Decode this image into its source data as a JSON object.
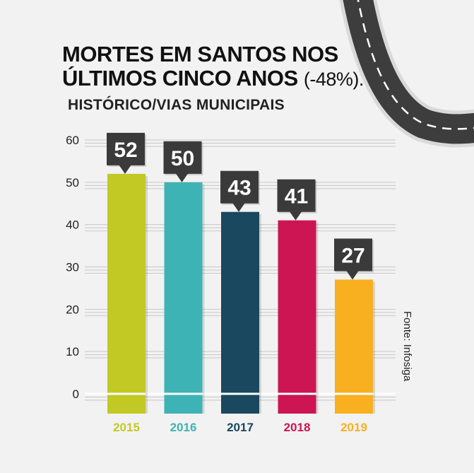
{
  "header": {
    "title_line1": "MORTES EM SANTOS NOS",
    "title_line2": "ÚLTIMOS CINCO ANOS",
    "title_change": "(-48%).",
    "subtitle": "HISTÓRICO/VIAS MUNICIPAIS"
  },
  "source": "Fonte: Infosiga",
  "chart_data": {
    "type": "bar",
    "categories": [
      "2015",
      "2016",
      "2017",
      "2018",
      "2019"
    ],
    "values": [
      52,
      50,
      43,
      41,
      27
    ],
    "data_labels": [
      "52",
      "50",
      "43",
      "41",
      "27"
    ],
    "colors": [
      "#c2c924",
      "#3eb3b5",
      "#19485f",
      "#cc1552",
      "#f8b021"
    ],
    "ylim": [
      0,
      60
    ],
    "yticks": [
      0,
      10,
      20,
      30,
      40,
      50,
      60
    ],
    "ytick_labels": [
      "0",
      "10",
      "20",
      "30",
      "40",
      "50",
      "60"
    ],
    "grid": true,
    "label_callout_color": "#3a3a3a"
  }
}
